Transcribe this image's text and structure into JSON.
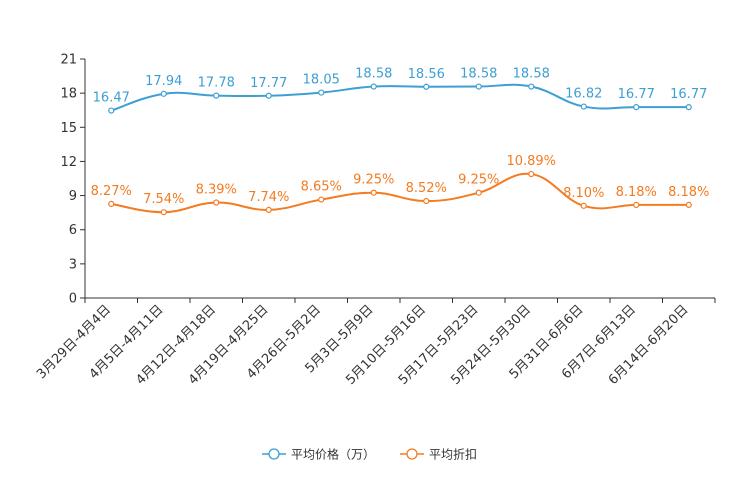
{
  "chart_data": {
    "type": "line",
    "title": "",
    "xlabel": "",
    "ylabel": "",
    "ylim": [
      0,
      21
    ],
    "yticks": [
      0,
      3,
      6,
      9,
      12,
      15,
      18,
      21
    ],
    "grid": false,
    "legend_position": "bottom-center",
    "categories": [
      "3月29日-4月4日",
      "4月5日-4月11日",
      "4月12日-4月18日",
      "4月19日-4月25日",
      "4月26日-5月2日",
      "5月3日-5月9日",
      "5月10日-5月16日",
      "5月17日-5月23日",
      "5月24日-5月30日",
      "5月31日-6月6日",
      "6月7日-6月13日",
      "6月14日-6月20日"
    ],
    "series": [
      {
        "name": "平均价格（万）",
        "color": "#3d9fd3",
        "values": [
          16.47,
          17.94,
          17.78,
          17.77,
          18.05,
          18.58,
          18.56,
          18.58,
          18.58,
          16.82,
          16.77,
          16.77
        ],
        "labels": [
          "16.47",
          "17.94",
          "17.78",
          "17.77",
          "18.05",
          "18.58",
          "18.56",
          "18.58",
          "18.58",
          "16.82",
          "16.77",
          "16.77"
        ]
      },
      {
        "name": "平均折扣",
        "color": "#f47b20",
        "values": [
          8.27,
          7.54,
          8.39,
          7.74,
          8.65,
          9.25,
          8.52,
          9.25,
          10.89,
          8.1,
          8.18,
          8.18
        ],
        "labels": [
          "8.27%",
          "7.54%",
          "8.39%",
          "7.74%",
          "8.65%",
          "9.25%",
          "8.52%",
          "9.25%",
          "10.89%",
          "8.10%",
          "8.18%",
          "8.18%"
        ]
      }
    ]
  }
}
